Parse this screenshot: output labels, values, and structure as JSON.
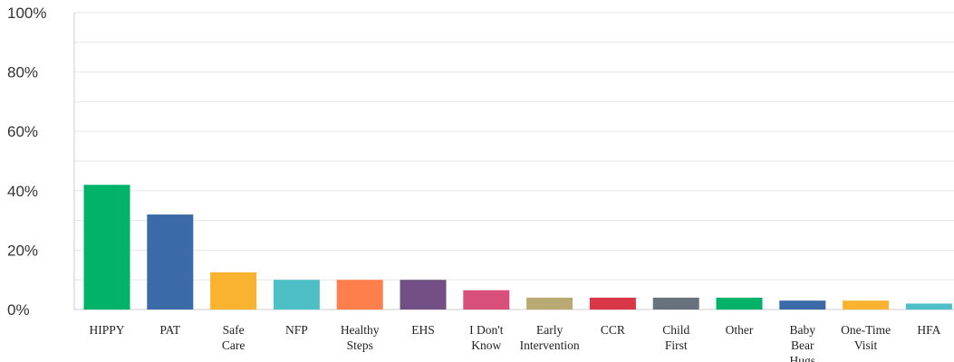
{
  "chart_data": {
    "type": "bar",
    "title": "",
    "xlabel": "",
    "ylabel": "",
    "ylim": [
      0,
      100
    ],
    "yticks": [
      "0%",
      "20%",
      "40%",
      "60%",
      "80%",
      "100%"
    ],
    "grid": true,
    "legend": "none",
    "categories": [
      {
        "label": [
          "HIPPY"
        ],
        "value": 42,
        "color": "#00b368"
      },
      {
        "label": [
          "PAT"
        ],
        "value": 32,
        "color": "#3b6aa8"
      },
      {
        "label": [
          "Safe",
          "Care"
        ],
        "value": 12.5,
        "color": "#f9b330"
      },
      {
        "label": [
          "NFP"
        ],
        "value": 10,
        "color": "#4fbfc6"
      },
      {
        "label": [
          "Healthy",
          "Steps"
        ],
        "value": 10,
        "color": "#ff7f4c"
      },
      {
        "label": [
          "EHS"
        ],
        "value": 10,
        "color": "#724f84"
      },
      {
        "label": [
          "I Don't",
          "Know"
        ],
        "value": 6.5,
        "color": "#d94f7c"
      },
      {
        "label": [
          "Early",
          "Intervention"
        ],
        "value": 4,
        "color": "#b9a972"
      },
      {
        "label": [
          "CCR"
        ],
        "value": 4,
        "color": "#d93648"
      },
      {
        "label": [
          "Child",
          "First"
        ],
        "value": 4,
        "color": "#67727d"
      },
      {
        "label": [
          "Other"
        ],
        "value": 4,
        "color": "#00b368"
      },
      {
        "label": [
          "Baby",
          "Bear",
          "Hugs"
        ],
        "value": 3,
        "color": "#3b6aa8"
      },
      {
        "label": [
          "One-Time",
          "Visit"
        ],
        "value": 3,
        "color": "#f9b330"
      },
      {
        "label": [
          "HFA"
        ],
        "value": 2,
        "color": "#4fbfc6"
      }
    ]
  }
}
